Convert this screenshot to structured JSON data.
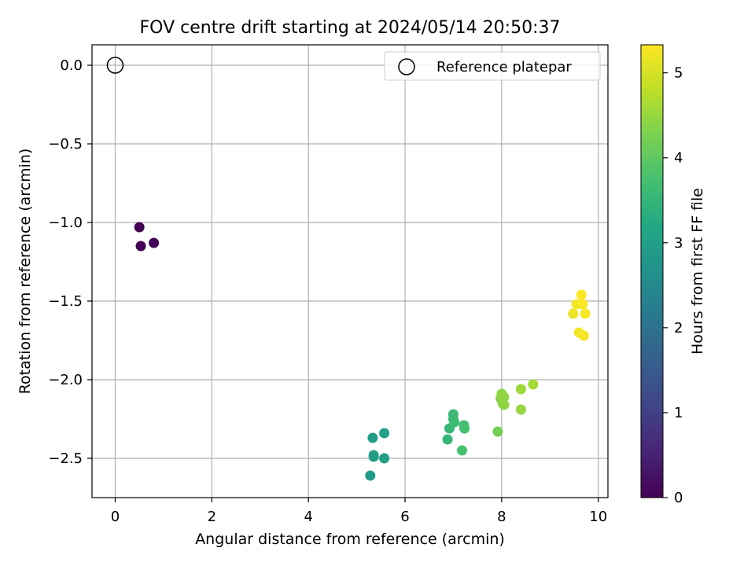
{
  "chart_data": {
    "type": "scatter",
    "title": "FOV centre drift starting at 2024/05/14 20:50:37",
    "xlabel": "Angular distance from reference (arcmin)",
    "ylabel": "Rotation from reference (arcmin)",
    "xlim": [
      -0.48,
      10.2
    ],
    "ylim": [
      -2.75,
      0.13
    ],
    "xticks": [
      0,
      2,
      4,
      6,
      8,
      10
    ],
    "xtick_labels": [
      "0",
      "2",
      "4",
      "6",
      "8",
      "10"
    ],
    "yticks": [
      0.0,
      -0.5,
      -1.0,
      -1.5,
      -2.0,
      -2.5
    ],
    "ytick_labels": [
      "0.0",
      "−0.5",
      "−1.0",
      "−1.5",
      "−2.0",
      "−2.5"
    ],
    "grid": true,
    "legend": {
      "position": "top-right",
      "entries": [
        "Reference platepar"
      ]
    },
    "reference_point": {
      "x": 0,
      "y": 0
    },
    "colormap": "viridis",
    "colorbar": {
      "label": "Hours from first FF file",
      "range": [
        0,
        5.33
      ],
      "ticks": [
        0,
        1,
        2,
        3,
        4,
        5
      ],
      "tick_labels": [
        "0",
        "1",
        "2",
        "3",
        "4",
        "5"
      ]
    },
    "points": [
      {
        "x": 0.5,
        "y": -1.03,
        "hours": 0.02
      },
      {
        "x": 0.53,
        "y": -1.15,
        "hours": 0.02
      },
      {
        "x": 0.8,
        "y": -1.13,
        "hours": 0.03
      },
      {
        "x": 5.28,
        "y": -2.61,
        "hours": 2.9
      },
      {
        "x": 5.33,
        "y": -2.37,
        "hours": 2.95
      },
      {
        "x": 5.35,
        "y": -2.48,
        "hours": 2.95
      },
      {
        "x": 5.35,
        "y": -2.49,
        "hours": 2.97
      },
      {
        "x": 5.57,
        "y": -2.34,
        "hours": 3.0
      },
      {
        "x": 5.57,
        "y": -2.5,
        "hours": 3.0
      },
      {
        "x": 6.88,
        "y": -2.38,
        "hours": 3.5
      },
      {
        "x": 6.92,
        "y": -2.31,
        "hours": 3.55
      },
      {
        "x": 7.0,
        "y": -2.22,
        "hours": 3.6
      },
      {
        "x": 7.0,
        "y": -2.25,
        "hours": 3.6
      },
      {
        "x": 7.02,
        "y": -2.27,
        "hours": 3.62
      },
      {
        "x": 7.18,
        "y": -2.45,
        "hours": 3.75
      },
      {
        "x": 7.22,
        "y": -2.29,
        "hours": 3.7
      },
      {
        "x": 7.23,
        "y": -2.31,
        "hours": 3.72
      },
      {
        "x": 7.92,
        "y": -2.33,
        "hours": 4.2
      },
      {
        "x": 7.98,
        "y": -2.12,
        "hours": 4.35
      },
      {
        "x": 8.0,
        "y": -2.09,
        "hours": 4.4
      },
      {
        "x": 8.02,
        "y": -2.15,
        "hours": 4.4
      },
      {
        "x": 8.05,
        "y": -2.16,
        "hours": 4.45
      },
      {
        "x": 8.05,
        "y": -2.11,
        "hours": 4.45
      },
      {
        "x": 8.4,
        "y": -2.06,
        "hours": 4.55
      },
      {
        "x": 8.4,
        "y": -2.19,
        "hours": 4.5
      },
      {
        "x": 8.65,
        "y": -2.03,
        "hours": 4.6
      },
      {
        "x": 9.48,
        "y": -1.58,
        "hours": 5.2
      },
      {
        "x": 9.55,
        "y": -1.52,
        "hours": 5.25
      },
      {
        "x": 9.6,
        "y": -1.7,
        "hours": 5.25
      },
      {
        "x": 9.65,
        "y": -1.46,
        "hours": 5.3
      },
      {
        "x": 9.68,
        "y": -1.52,
        "hours": 5.3
      },
      {
        "x": 9.7,
        "y": -1.72,
        "hours": 5.28
      },
      {
        "x": 9.73,
        "y": -1.58,
        "hours": 5.3
      }
    ]
  }
}
